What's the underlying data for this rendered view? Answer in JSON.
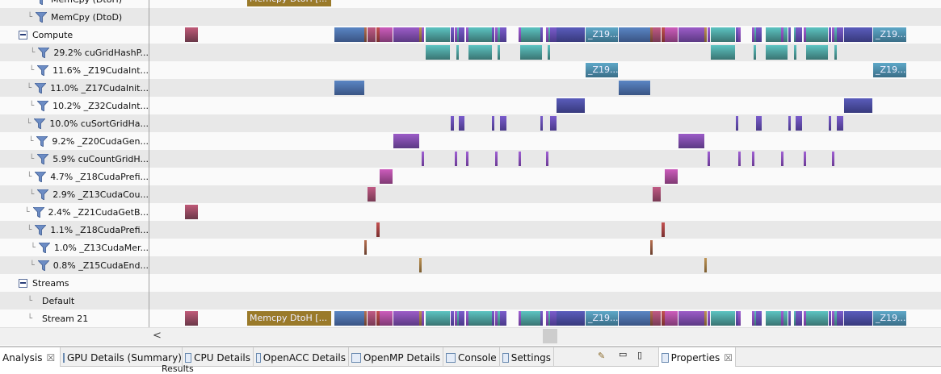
{
  "time_range": [
    0,
    980
  ],
  "rows": [
    {
      "label": "MemCpy (DtoH)",
      "kind": "filter",
      "level": 1,
      "blocks": [
        {
          "start": 121,
          "end": 225,
          "color": "#9a7a2a",
          "label": "Memcpy DtoH [..."
        }
      ]
    },
    {
      "label": "MemCpy (DtoD)",
      "kind": "filter",
      "level": 1,
      "blocks": []
    },
    {
      "label": "Compute",
      "kind": "group",
      "merge": "compute",
      "blocks": []
    },
    {
      "label": "29.2% cuGridHashP...",
      "kind": "filter",
      "level": 2,
      "color": "#5cc4c2",
      "color2": "#3a7472",
      "blocks": [
        [
          342,
          372
        ],
        [
          380,
          382
        ],
        [
          395,
          424
        ],
        [
          431,
          433
        ],
        [
          459,
          486
        ],
        [
          493,
          495
        ],
        [
          695,
          725
        ],
        [
          748,
          750
        ],
        [
          763,
          790
        ],
        [
          798,
          800
        ],
        [
          813,
          840
        ],
        [
          848,
          850
        ]
      ]
    },
    {
      "label": "11.6% _Z19CudaInt...",
      "kind": "filter",
      "level": 2,
      "color": "#5ea8c8",
      "color2": "#3a6e88",
      "text": "_Z19...",
      "blocks": [
        [
          540,
          580
        ],
        [
          896,
          937
        ]
      ]
    },
    {
      "label": "11.0% _Z17CudaInit...",
      "kind": "filter",
      "level": 2,
      "color": "#5a86c4",
      "color2": "#3a5484",
      "blocks": [
        [
          229,
          266
        ],
        [
          581,
          620
        ]
      ]
    },
    {
      "label": "10.2% _Z32CudaInt...",
      "kind": "filter",
      "level": 2,
      "color": "#5a5cbc",
      "color2": "#383a7c",
      "blocks": [
        [
          504,
          539
        ],
        [
          860,
          895
        ]
      ]
    },
    {
      "label": "10.0% cuSortGridHa...",
      "kind": "filter",
      "level": 2,
      "color": "#7a5ccc",
      "color2": "#4a3a8a",
      "blocks": [
        [
          373,
          377
        ],
        [
          383,
          390
        ],
        [
          424,
          427
        ],
        [
          434,
          442
        ],
        [
          484,
          487
        ],
        [
          496,
          504
        ],
        [
          726,
          729
        ],
        [
          751,
          758
        ],
        [
          791,
          794
        ],
        [
          800,
          808
        ],
        [
          841,
          844
        ],
        [
          851,
          859
        ]
      ]
    },
    {
      "label": "9.2% _Z20CudaGen...",
      "kind": "filter",
      "level": 2,
      "color": "#9c5cc8",
      "color2": "#5c3a84",
      "blocks": [
        [
          302,
          334
        ],
        [
          655,
          687
        ]
      ]
    },
    {
      "label": "5.9% cuCountGridH...",
      "kind": "filter",
      "level": 2,
      "color": "#a060d4",
      "color2": "#6a3a94",
      "blocks": [
        [
          337,
          340
        ],
        [
          378,
          380
        ],
        [
          392,
          394
        ],
        [
          428,
          430
        ],
        [
          457,
          459
        ],
        [
          491,
          493
        ],
        [
          691,
          693
        ],
        [
          729,
          731
        ],
        [
          746,
          748
        ],
        [
          782,
          784
        ],
        [
          810,
          812
        ],
        [
          845,
          847
        ]
      ]
    },
    {
      "label": "4.7% _Z18CudaPrefi...",
      "kind": "filter",
      "level": 2,
      "color": "#cc5cbc",
      "color2": "#803a74",
      "blocks": [
        [
          285,
          301
        ],
        [
          638,
          654
        ]
      ]
    },
    {
      "label": "2.9% _Z13CudaCou...",
      "kind": "filter",
      "level": 2,
      "color": "#c05a84",
      "color2": "#783a54",
      "blocks": [
        [
          270,
          280
        ],
        [
          623,
          633
        ]
      ]
    },
    {
      "label": "2.4% _Z21CudaGetB...",
      "kind": "filter",
      "level": 2,
      "color": "#c05a78",
      "color2": "#6a3848",
      "blocks": [
        [
          44,
          60
        ]
      ]
    },
    {
      "label": "1.1% _Z18CudaPrefi...",
      "kind": "filter",
      "level": 2,
      "color": "#c45050",
      "color2": "#7a3030",
      "blocks": [
        [
          281,
          285
        ],
        [
          634,
          638
        ]
      ]
    },
    {
      "label": "1.0% _Z13CudaMer...",
      "kind": "filter",
      "level": 2,
      "color": "#b87050",
      "color2": "#6a4030",
      "blocks": [
        [
          266,
          269
        ],
        [
          620,
          623
        ]
      ]
    },
    {
      "label": "0.8% _Z15CudaEnd...",
      "kind": "filter",
      "level": 2,
      "color": "#c09454",
      "color2": "#7a5c30",
      "blocks": [
        [
          334,
          336
        ],
        [
          687,
          689
        ]
      ]
    },
    {
      "label": "Streams",
      "kind": "group",
      "blocks": []
    },
    {
      "label": "Default",
      "kind": "plain",
      "level": 1,
      "blocks": []
    },
    {
      "label": "Stream 21",
      "kind": "plain",
      "level": 1,
      "merge": "compute",
      "extra": [
        {
          "start": 121,
          "end": 225,
          "color": "#9a7a2a",
          "label": "Memcpy DtoH [..."
        }
      ],
      "blocks": []
    }
  ],
  "tabs": [
    {
      "label": "Analysis",
      "active": true,
      "closable": true
    },
    {
      "label": "GPU Details (Summary)"
    },
    {
      "label": "CPU Details"
    },
    {
      "label": "OpenACC Details"
    },
    {
      "label": "OpenMP Details"
    },
    {
      "label": "Console"
    },
    {
      "label": "Settings"
    }
  ],
  "properties_tab": "Properties",
  "results_label": "Results",
  "scroll_left": "<"
}
